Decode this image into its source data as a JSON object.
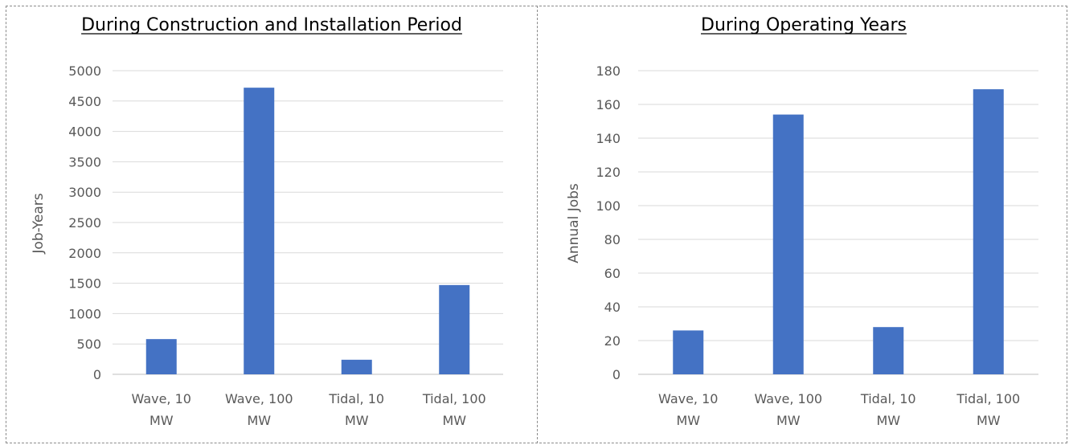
{
  "chart_data": [
    {
      "type": "bar",
      "title": "During Construction and Installation Period",
      "xlabel": "",
      "ylabel": "Job-Years",
      "categories": [
        [
          "Wave, 10",
          "MW"
        ],
        [
          "Wave, 100",
          "MW"
        ],
        [
          "Tidal, 10",
          "MW"
        ],
        [
          "Tidal, 100",
          "MW"
        ]
      ],
      "values": [
        580,
        4720,
        240,
        1470
      ],
      "ylim": [
        0,
        5000
      ],
      "yticks": [
        0,
        500,
        1000,
        1500,
        2000,
        2500,
        3000,
        3500,
        4000,
        4500,
        5000
      ],
      "grid": true,
      "color": "#4472C4"
    },
    {
      "type": "bar",
      "title": "During Operating Years",
      "xlabel": "",
      "ylabel": "Annual Jobs",
      "categories": [
        [
          "Wave, 10",
          "MW"
        ],
        [
          "Wave, 100",
          "MW"
        ],
        [
          "Tidal, 10",
          "MW"
        ],
        [
          "Tidal, 100",
          "MW"
        ]
      ],
      "values": [
        26,
        154,
        28,
        169
      ],
      "ylim": [
        0,
        180
      ],
      "yticks": [
        0,
        20,
        40,
        60,
        80,
        100,
        120,
        140,
        160,
        180
      ],
      "grid": true,
      "color": "#4472C4"
    }
  ]
}
